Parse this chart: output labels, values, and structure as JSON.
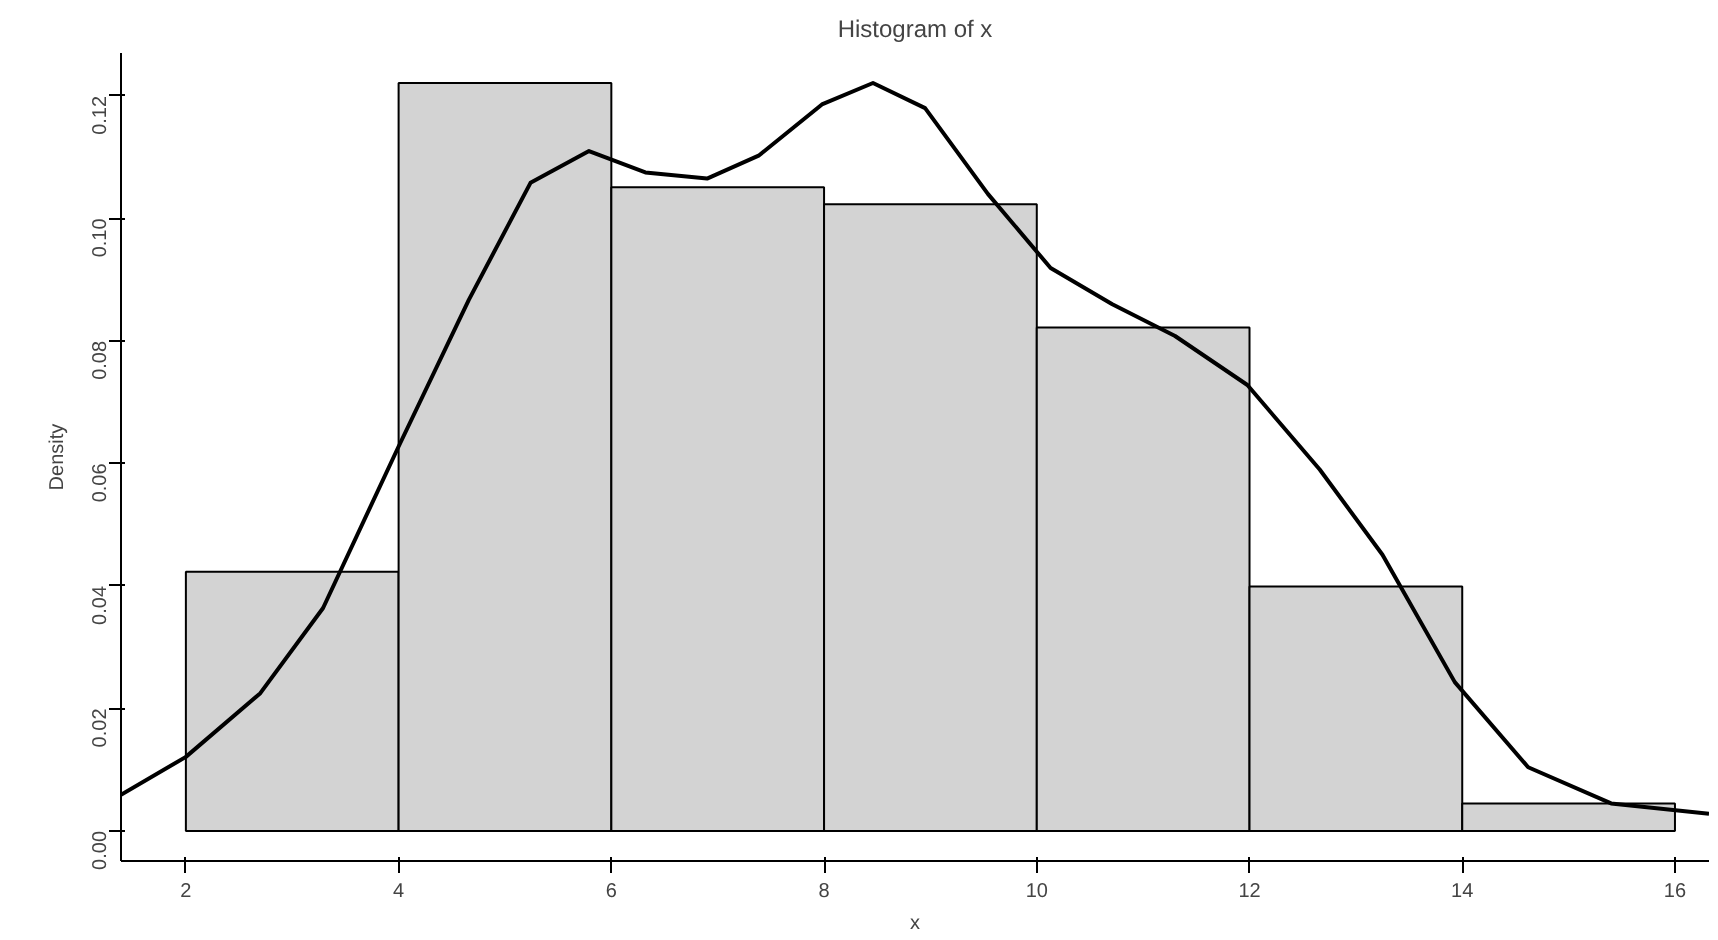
{
  "chart_data": {
    "type": "histogram",
    "title": "Histogram of x",
    "xlabel": "x",
    "ylabel": "Density",
    "color": "#d3d3d3",
    "bins": [
      2,
      4,
      6,
      8,
      10,
      12,
      14,
      16
    ],
    "values": [
      0.0423,
      0.1221,
      0.1051,
      0.1023,
      0.0822,
      0.0399,
      0.0045
    ],
    "series": [
      {
        "type": "line",
        "color": "#000000",
        "x": [
          1.39,
          2.0,
          2.7,
          3.29,
          3.99,
          4.66,
          5.24,
          5.79,
          6.32,
          6.9,
          7.39,
          7.98,
          8.46,
          8.95,
          9.54,
          10.13,
          10.71,
          11.3,
          11.98,
          12.66,
          13.25,
          13.93,
          14.62,
          15.4,
          16.32
        ],
        "values": [
          0.0059,
          0.0121,
          0.0225,
          0.0364,
          0.0624,
          0.0867,
          0.1058,
          0.111,
          0.1075,
          0.1065,
          0.1103,
          0.1186,
          0.1221,
          0.118,
          0.104,
          0.0919,
          0.086,
          0.0808,
          0.0728,
          0.059,
          0.0451,
          0.0243,
          0.0104,
          0.0045,
          0.0028
        ]
      }
    ],
    "xlim": [
      1.39,
      16.32
    ],
    "ylim": [
      -0.0049,
      0.127
    ],
    "xticks": [
      2,
      4,
      6,
      8,
      10,
      12,
      14,
      16
    ],
    "yticks": [
      {
        "value": 0,
        "label": "0.00"
      },
      {
        "value": 0.02,
        "label": "0.02"
      },
      {
        "value": 0.04,
        "label": "0.04"
      },
      {
        "value": 0.06,
        "label": "0.06"
      },
      {
        "value": 0.08,
        "label": "0.08"
      },
      {
        "value": 0.1,
        "label": "0.10"
      },
      {
        "value": 0.12,
        "label": "0.12"
      }
    ],
    "grid": false
  }
}
